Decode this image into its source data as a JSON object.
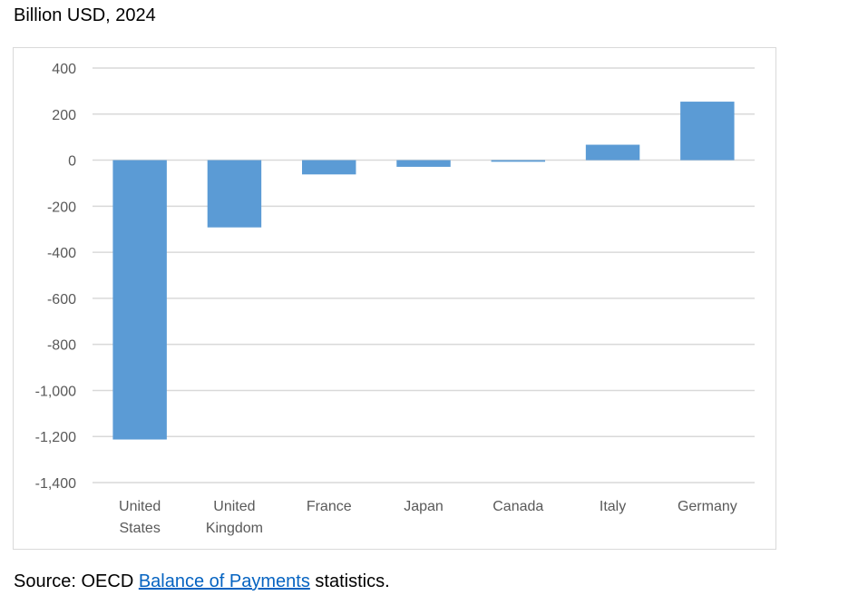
{
  "chart_data": {
    "type": "bar",
    "title": "Billion USD, 2024",
    "xlabel": "",
    "ylabel": "",
    "categories": [
      [
        "United",
        "States"
      ],
      [
        "United",
        "Kingdom"
      ],
      [
        "France"
      ],
      [
        "Japan"
      ],
      [
        "Canada"
      ],
      [
        "Italy"
      ],
      [
        "Germany"
      ]
    ],
    "values": [
      -1213,
      -292,
      -62,
      -29,
      -7,
      67,
      254
    ],
    "ylim": [
      -1400,
      400
    ],
    "yticks": [
      400,
      200,
      0,
      -200,
      -400,
      -600,
      -800,
      -1000,
      -1200,
      -1400
    ],
    "ytick_labels": [
      "400",
      "200",
      "0",
      "-200",
      "-400",
      "-600",
      "-800",
      "-1,000",
      "-1,200",
      "-1,400"
    ],
    "grid": true,
    "bar_color": "#5b9bd5",
    "grid_color": "#d9d9d9"
  },
  "source": {
    "prefix": "Source: OECD ",
    "link": "Balance of Payments",
    "suffix": " statistics."
  }
}
